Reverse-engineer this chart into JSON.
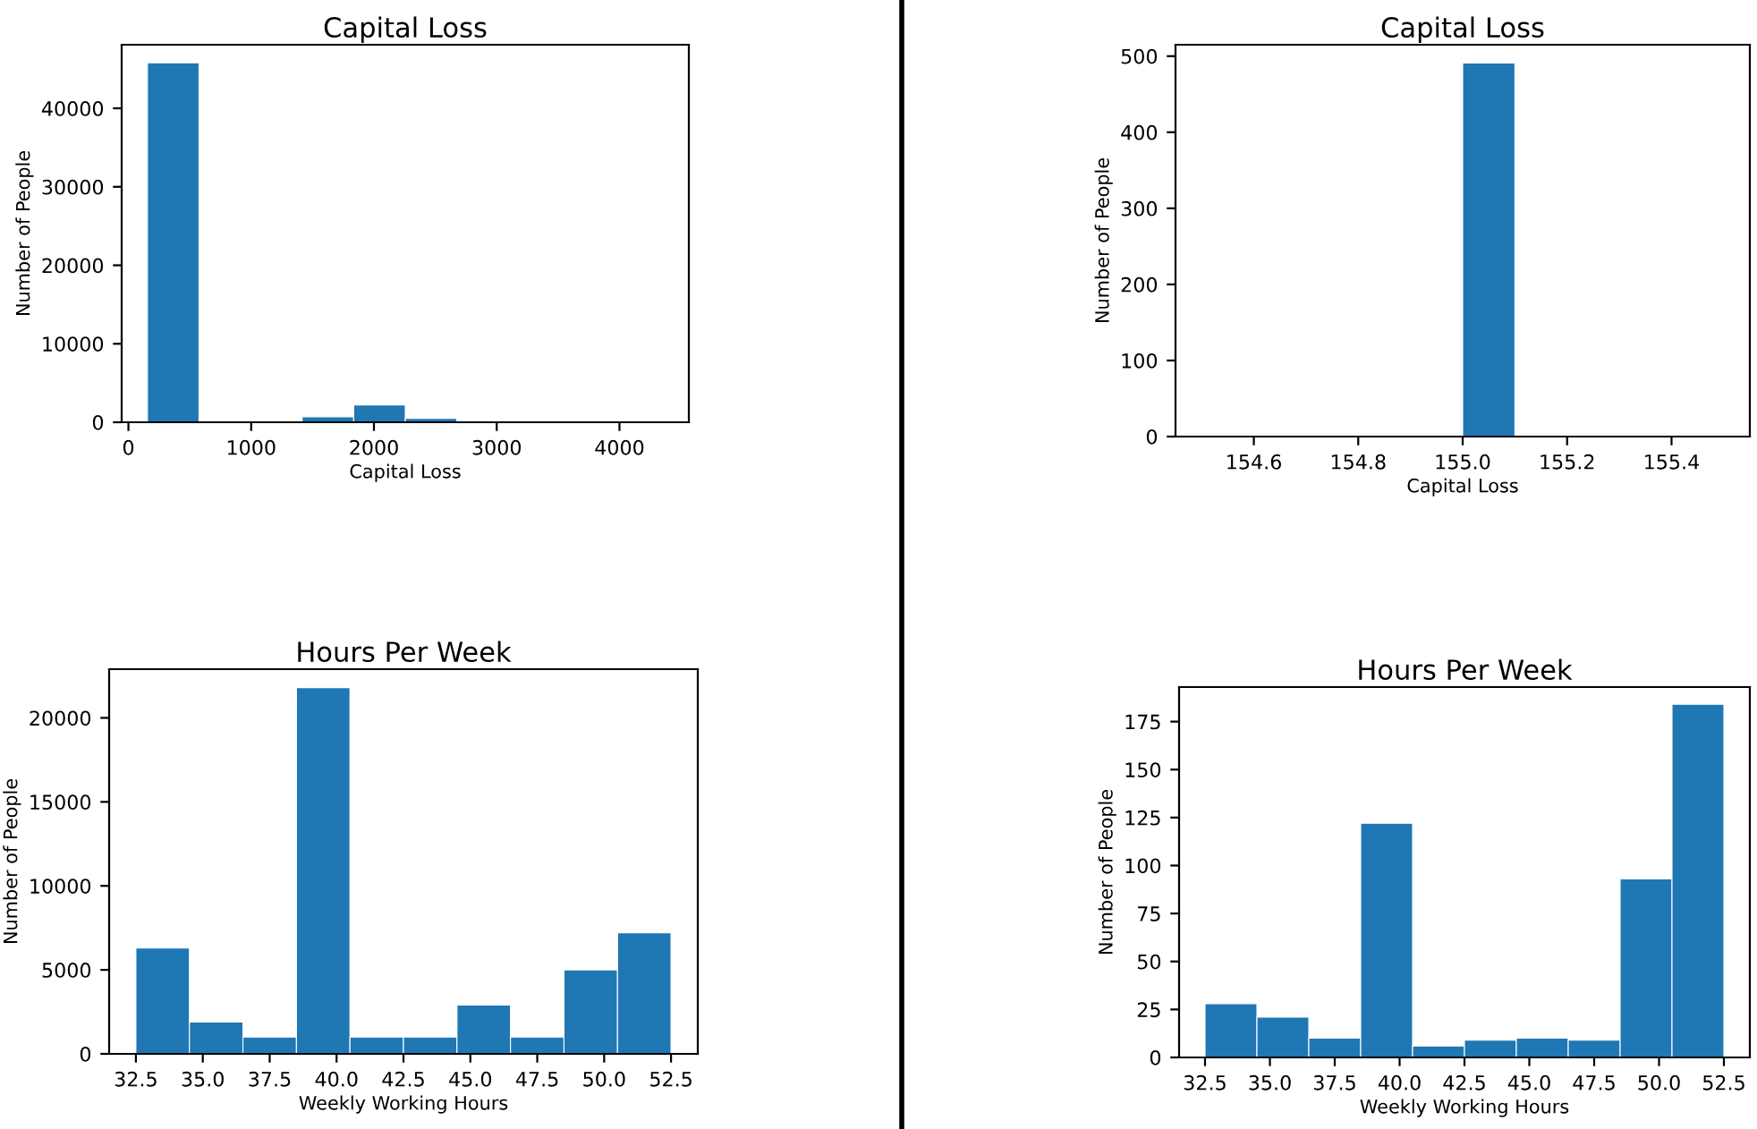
{
  "chart_data": [
    {
      "type": "histogram",
      "title": "Capital Loss",
      "xlabel": "Capital Loss",
      "ylabel": "Number of People",
      "color": "#1f77b4",
      "bins": [
        155,
        575,
        995,
        1415,
        1835,
        2255,
        2675,
        3095,
        3515,
        3935,
        4355
      ],
      "values": [
        45800,
        0,
        0,
        700,
        2200,
        500,
        0,
        0,
        0,
        0
      ],
      "xlim": [
        -55,
        4565
      ],
      "xticks": [
        0,
        1000,
        2000,
        3000,
        4000
      ],
      "ylim": [
        0,
        48100
      ],
      "yticks": [
        0,
        10000,
        20000,
        30000,
        40000
      ],
      "grid": false
    },
    {
      "type": "histogram",
      "title": "Capital Loss",
      "xlabel": "Capital Loss",
      "ylabel": "Number of People",
      "color": "#1f77b4",
      "bins": [
        154.5,
        154.6,
        154.7,
        154.8,
        154.9,
        155.0,
        155.1,
        155.2,
        155.3,
        155.4,
        155.5
      ],
      "values": [
        0,
        0,
        0,
        0,
        0,
        491,
        0,
        0,
        0,
        0
      ],
      "xlim": [
        154.45,
        155.55
      ],
      "xticks": [
        154.6,
        154.8,
        {
          "value": 155,
          "label": "155.0"
        },
        155.2,
        155.4
      ],
      "ylim": [
        0,
        515
      ],
      "yticks": [
        0,
        100,
        200,
        300,
        400,
        500
      ],
      "grid": false
    },
    {
      "type": "histogram",
      "title": "Hours Per Week",
      "xlabel": "Weekly Working Hours",
      "ylabel": "Number of People",
      "color": "#1f77b4",
      "bins": [
        32.5,
        34.5,
        36.5,
        38.5,
        40.5,
        42.5,
        44.5,
        46.5,
        48.5,
        50.5,
        52.5
      ],
      "values": [
        6300,
        1900,
        1000,
        21800,
        1000,
        1000,
        2900,
        1000,
        5000,
        7200
      ],
      "xlim": [
        31.5,
        53.5
      ],
      "xticks": [
        32.5,
        {
          "value": 35,
          "label": "35.0"
        },
        37.5,
        {
          "value": 40,
          "label": "40.0"
        },
        42.5,
        {
          "value": 45,
          "label": "45.0"
        },
        47.5,
        {
          "value": 50,
          "label": "50.0"
        },
        52.5
      ],
      "ylim": [
        0,
        22900
      ],
      "yticks": [
        0,
        5000,
        10000,
        15000,
        20000
      ],
      "grid": false
    },
    {
      "type": "histogram",
      "title": "Hours Per Week",
      "xlabel": "Weekly Working Hours",
      "ylabel": "Number of People",
      "color": "#1f77b4",
      "bins": [
        32.5,
        34.5,
        36.5,
        38.5,
        40.5,
        42.5,
        44.5,
        46.5,
        48.5,
        50.5,
        52.5
      ],
      "values": [
        28,
        21,
        10,
        122,
        6,
        9,
        10,
        9,
        93,
        184
      ],
      "xlim": [
        31.5,
        53.5
      ],
      "xticks": [
        32.5,
        {
          "value": 35,
          "label": "35.0"
        },
        37.5,
        {
          "value": 40,
          "label": "40.0"
        },
        42.5,
        {
          "value": 45,
          "label": "45.0"
        },
        47.5,
        {
          "value": 50,
          "label": "50.0"
        },
        52.5
      ],
      "ylim": [
        0,
        193
      ],
      "yticks": [
        0,
        25,
        50,
        75,
        100,
        125,
        150,
        175
      ],
      "grid": false
    }
  ]
}
